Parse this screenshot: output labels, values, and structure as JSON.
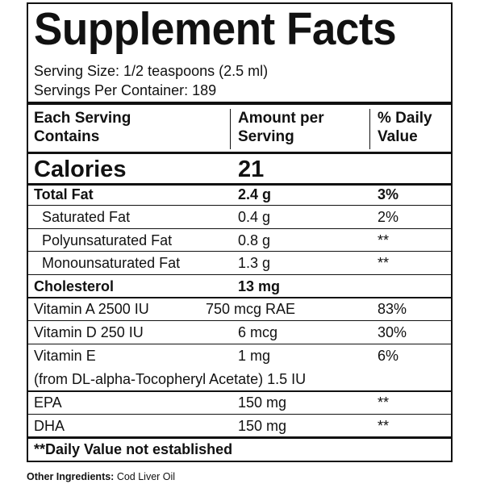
{
  "title": "Supplement Facts",
  "serving_size": "Serving Size: 1/2 teaspoons (2.5 ml)",
  "servings_per_container": "Servings Per Container: 189",
  "header": {
    "contains": [
      "Each Serving",
      "Contains"
    ],
    "amount": [
      "Amount per",
      "Serving"
    ],
    "dv": [
      "% Daily",
      "Value"
    ]
  },
  "calories": {
    "label": "Calories",
    "amount": "21"
  },
  "rows": [
    {
      "label": "Total Fat",
      "amount": "2.4 g",
      "dv": "3%"
    },
    {
      "label": "Saturated Fat",
      "amount": "0.4 g",
      "dv": "2%"
    },
    {
      "label": "Polyunsaturated Fat",
      "amount": "0.8 g",
      "dv": "**"
    },
    {
      "label": "Monounsaturated Fat",
      "amount": "1.3 g",
      "dv": "**"
    },
    {
      "label": "Cholesterol",
      "amount": "13 mg"
    },
    {
      "label": "Vitamin A 2500 IU",
      "amount": "750 mcg RAE",
      "dv": "83%"
    },
    {
      "label": "Vitamin D 250 IU",
      "amount": "6 mcg",
      "dv": "30%"
    },
    {
      "label": "Vitamin E",
      "amount": "1 mg",
      "dv": "6%"
    },
    {
      "label": "EPA",
      "amount": "150 mg",
      "dv": "**"
    },
    {
      "label": "DHA",
      "amount": "150 mg",
      "dv": "**"
    }
  ],
  "vitamin_e_note": "(from DL-alpha-Tocopheryl Acetate) 1.5 IU",
  "footnote": "**Daily Value not established",
  "other_ingredients": {
    "label": "Other Ingredients:",
    "value": "Cod Liver Oil"
  }
}
